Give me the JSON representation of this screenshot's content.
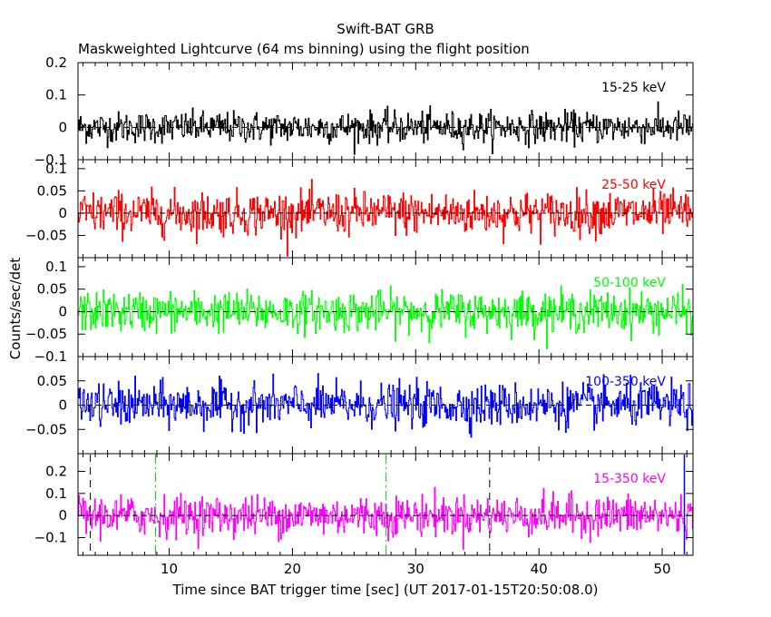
{
  "chart_data": {
    "type": "line",
    "title": "Swift-BAT GRB",
    "subtitle": "Maskweighted Lightcurve (64 ms binning) using the flight position",
    "xlabel": "Time since BAT trigger time [sec] (UT 2017-01-15T20:50:08.0)",
    "ylabel": "Counts/sec/det",
    "xlim": [
      2.6,
      52.5
    ],
    "x_ticks": [
      10,
      20,
      30,
      40,
      50
    ],
    "x_tick_labels": [
      "10",
      "20",
      "30",
      "40",
      "50"
    ],
    "bin_seconds": 0.064,
    "step_style": "histogram",
    "panels": [
      {
        "band": "15-25 keV",
        "color": "#000000",
        "ylim": [
          -0.1,
          0.2
        ],
        "y_ticks": [
          -0.1,
          0,
          0.1,
          0.2
        ],
        "y_tick_labels": [
          "−0.1",
          "0",
          "0.1",
          "0.2"
        ],
        "noise_sigma": 0.024
      },
      {
        "band": "25-50 keV",
        "color": "#ff0000",
        "ylim": [
          -0.1,
          0.12
        ],
        "y_ticks": [
          -0.05,
          0,
          0.05,
          0.1
        ],
        "y_tick_labels": [
          "−0.05",
          "0",
          "0.05",
          "0.1"
        ],
        "noise_sigma": 0.024
      },
      {
        "band": "50-100 keV",
        "color": "#00ff00",
        "ylim": [
          -0.1,
          0.12
        ],
        "y_ticks": [
          -0.1,
          -0.05,
          0,
          0.05,
          0.1
        ],
        "y_tick_labels": [
          "−0.1",
          "−0.05",
          "0",
          "0.05",
          "0.1"
        ],
        "noise_sigma": 0.022
      },
      {
        "band": "100-350 keV",
        "color": "#0000ff",
        "ylim": [
          -0.1,
          0.1
        ],
        "y_ticks": [
          -0.05,
          0,
          0.05
        ],
        "y_tick_labels": [
          "−0.05",
          "0",
          "0.05"
        ],
        "noise_sigma": 0.022
      },
      {
        "band": "15-350 keV",
        "color": "#ff00ff",
        "ylim": [
          -0.18,
          0.28
        ],
        "y_ticks": [
          -0.1,
          0,
          0.1,
          0.2
        ],
        "y_tick_labels": [
          "−0.1",
          "0",
          "0.1",
          "0.2"
        ],
        "noise_sigma": 0.045
      }
    ],
    "bottom_panel_markers": [
      {
        "x": 3.6,
        "style": "dashed",
        "color": "#000000"
      },
      {
        "x": 8.9,
        "style": "dashdot",
        "color": "#00cc00"
      },
      {
        "x": 27.6,
        "style": "dashdot",
        "color": "#00cc00"
      },
      {
        "x": 36.0,
        "style": "dashed",
        "color": "#000000"
      },
      {
        "x": 51.8,
        "style": "solid",
        "color": "#0000ff"
      }
    ],
    "zero_line": "dashed",
    "grid": false
  }
}
